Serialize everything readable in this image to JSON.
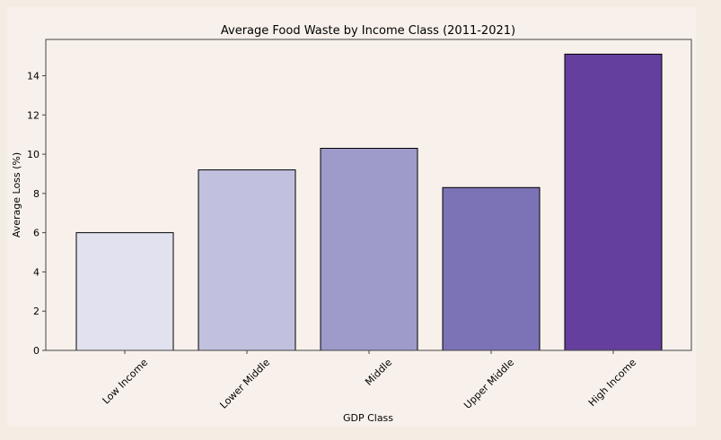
{
  "chart_data": {
    "type": "bar",
    "title": "Average Food Waste by Income Class (2011-2021)",
    "xlabel": "GDP Class",
    "ylabel": "Average Loss (%)",
    "categories": [
      "Low Income",
      "Lower Middle",
      "Middle",
      "Upper Middle",
      "High Income"
    ],
    "values": [
      6.0,
      9.2,
      10.3,
      8.3,
      15.1
    ],
    "bar_colors": [
      "#e2e1ef",
      "#c1c1df",
      "#9e9bca",
      "#7c73b7",
      "#643f9d"
    ],
    "ylim": [
      0,
      15.85
    ],
    "yticks": [
      0,
      2,
      4,
      6,
      8,
      10,
      12,
      14
    ],
    "grid": false,
    "legend": "none",
    "colors": {
      "page_background": "#f4ede4",
      "plot_background": "#f8f1eb",
      "axis": "#444444",
      "bar_edge": "#000000"
    }
  }
}
